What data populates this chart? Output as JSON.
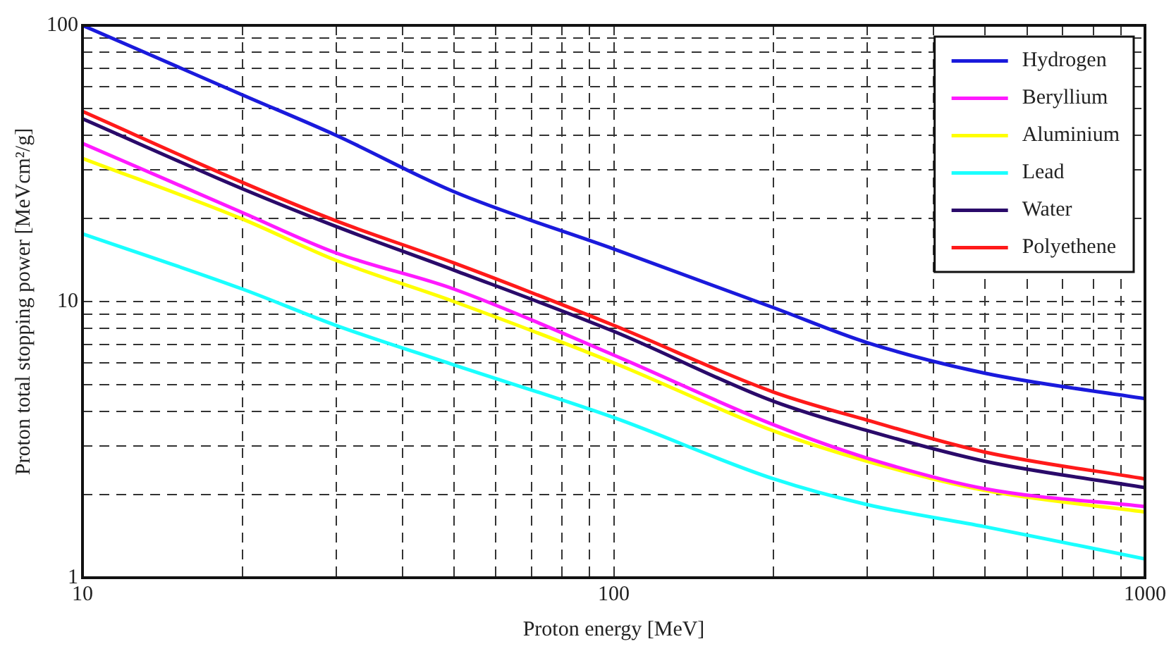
{
  "chart_data": {
    "type": "line",
    "xlabel": "Proton energy [MeV]",
    "ylabel": "Proton total stopping power [MeVcm²/g]",
    "x": [
      10,
      20,
      30,
      50,
      100,
      200,
      300,
      500,
      1000
    ],
    "series": [
      {
        "name": "Hydrogen",
        "color": "#1a1adc",
        "values": [
          100,
          56,
          40,
          25,
          15.5,
          9.5,
          7.1,
          5.5,
          4.45
        ]
      },
      {
        "name": "Beryllium",
        "color": "#ff1aff",
        "values": [
          37.4,
          21,
          15,
          11.1,
          6.4,
          3.58,
          2.71,
          2.1,
          1.81
        ]
      },
      {
        "name": "Aluminium",
        "color": "#ffff00",
        "values": [
          33,
          19.9,
          14.1,
          10,
          6.0,
          3.4,
          2.64,
          2.07,
          1.73
        ]
      },
      {
        "name": "Lead",
        "color": "#1affff",
        "values": [
          17.6,
          11.1,
          8.2,
          5.9,
          3.8,
          2.28,
          1.84,
          1.53,
          1.17
        ]
      },
      {
        "name": "Water",
        "color": "#2a0a6a",
        "values": [
          45.9,
          25.6,
          18.7,
          13,
          7.8,
          4.35,
          3.41,
          2.64,
          2.12
        ]
      },
      {
        "name": "Polyethene",
        "color": "#ff1a1a",
        "values": [
          48.8,
          27,
          19.6,
          13.8,
          8.2,
          4.7,
          3.72,
          2.85,
          2.28
        ]
      }
    ],
    "log": "xy",
    "xlim": [
      10,
      1000
    ],
    "ylim": [
      1,
      100
    ],
    "xticks": [
      10,
      {
        "value": 20,
        "label": null
      },
      {
        "value": 30,
        "label": null
      },
      {
        "value": 40,
        "label": null
      },
      {
        "value": 50,
        "label": null
      },
      {
        "value": 60,
        "label": null
      },
      {
        "value": 70,
        "label": null
      },
      {
        "value": 80,
        "label": null
      },
      {
        "value": 90,
        "label": null
      },
      100,
      {
        "value": 200,
        "label": null
      },
      {
        "value": 300,
        "label": null
      },
      {
        "value": 400,
        "label": null
      },
      {
        "value": 500,
        "label": null
      },
      {
        "value": 600,
        "label": null
      },
      {
        "value": 700,
        "label": null
      },
      {
        "value": 800,
        "label": null
      },
      {
        "value": 900,
        "label": null
      },
      1000
    ],
    "yticks": [
      1,
      {
        "value": 2,
        "label": null
      },
      {
        "value": 3,
        "label": null
      },
      {
        "value": 4,
        "label": null
      },
      {
        "value": 5,
        "label": null
      },
      {
        "value": 6,
        "label": null
      },
      {
        "value": 7,
        "label": null
      },
      {
        "value": 8,
        "label": null
      },
      {
        "value": 9,
        "label": null
      },
      10,
      {
        "value": 20,
        "label": null
      },
      {
        "value": 30,
        "label": null
      },
      {
        "value": 40,
        "label": null
      },
      {
        "value": 50,
        "label": null
      },
      {
        "value": 60,
        "label": null
      },
      {
        "value": 70,
        "label": null
      },
      {
        "value": 80,
        "label": null
      },
      {
        "value": 90,
        "label": null
      },
      100
    ],
    "grid": true,
    "legend": "top right",
    "marker": "none",
    "line_style": "solid"
  }
}
